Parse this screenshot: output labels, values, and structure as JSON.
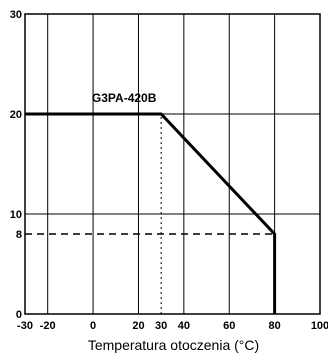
{
  "chart_data": {
    "type": "line",
    "title": "",
    "xlabel": "Temperatura otoczenia (°C)",
    "ylabel": "",
    "xlim": [
      -30,
      100
    ],
    "ylim": [
      0,
      30
    ],
    "grid": true,
    "x_ticks": [
      -30,
      -20,
      0,
      20,
      30,
      40,
      60,
      80,
      100
    ],
    "x_gridlines": [
      -20,
      0,
      20,
      40,
      60,
      80
    ],
    "y_ticks": [
      0,
      8,
      10,
      20,
      30
    ],
    "y_gridlines": [
      10,
      20
    ],
    "series": [
      {
        "name": "G3PA-420B",
        "x": [
          -30,
          30,
          80,
          80
        ],
        "y": [
          20,
          20,
          8,
          0
        ]
      }
    ],
    "reference_lines": [
      {
        "x": [
          -30,
          80
        ],
        "y": [
          8,
          8
        ],
        "style": "dashed"
      },
      {
        "x": [
          30,
          30
        ],
        "y": [
          0,
          20
        ],
        "style": "dotted"
      }
    ]
  }
}
